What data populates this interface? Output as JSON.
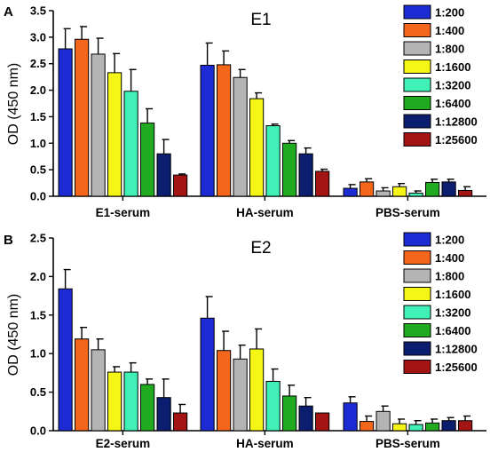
{
  "colors": [
    "#1c2bd4",
    "#f4661a",
    "#b4b4b4",
    "#f5f516",
    "#40f0b6",
    "#1faa1f",
    "#0b1d6e",
    "#a31414"
  ],
  "chart_data": [
    {
      "type": "bar",
      "panel_label": "A",
      "title": "E1",
      "xlabel": "",
      "ylabel": "OD (450 nm)",
      "ylim": [
        0,
        3.5
      ],
      "yticks": [
        "0.0",
        "0.5",
        "1.0",
        "1.5",
        "2.0",
        "2.5",
        "3.0",
        "3.5"
      ],
      "categories": [
        "E1-serum",
        "HA-serum",
        "PBS-serum"
      ],
      "legend_position": "top-right",
      "series": [
        {
          "name": "1:200",
          "values": [
            2.78,
            2.47,
            0.15
          ],
          "errors": [
            0.38,
            0.42,
            0.07
          ]
        },
        {
          "name": "1:400",
          "values": [
            2.96,
            2.48,
            0.27
          ],
          "errors": [
            0.24,
            0.26,
            0.06
          ]
        },
        {
          "name": "1:800",
          "values": [
            2.68,
            2.24,
            0.1
          ],
          "errors": [
            0.3,
            0.15,
            0.06
          ]
        },
        {
          "name": "1:1600",
          "values": [
            2.33,
            1.84,
            0.18
          ],
          "errors": [
            0.36,
            0.11,
            0.06
          ]
        },
        {
          "name": "1:3200",
          "values": [
            1.98,
            1.33,
            0.06
          ],
          "errors": [
            0.41,
            0.03,
            0.04
          ]
        },
        {
          "name": "1:6400",
          "values": [
            1.38,
            1.0,
            0.26
          ],
          "errors": [
            0.27,
            0.05,
            0.06
          ]
        },
        {
          "name": "1:12800",
          "values": [
            0.8,
            0.8,
            0.27
          ],
          "errors": [
            0.27,
            0.11,
            0.05
          ]
        },
        {
          "name": "1:25600",
          "values": [
            0.4,
            0.47,
            0.11
          ],
          "errors": [
            0.02,
            0.04,
            0.07
          ]
        }
      ]
    },
    {
      "type": "bar",
      "panel_label": "B",
      "title": "E2",
      "xlabel": "",
      "ylabel": "OD (450 nm)",
      "ylim": [
        0,
        2.5
      ],
      "yticks": [
        "0.0",
        "0.5",
        "1.0",
        "1.5",
        "2.0",
        "2.5"
      ],
      "categories": [
        "E2-serum",
        "HA-serum",
        "PBS-serum"
      ],
      "legend_position": "top-right",
      "series": [
        {
          "name": "1:200",
          "values": [
            1.84,
            1.46,
            0.36
          ],
          "errors": [
            0.25,
            0.28,
            0.08
          ]
        },
        {
          "name": "1:400",
          "values": [
            1.19,
            1.04,
            0.12
          ],
          "errors": [
            0.15,
            0.25,
            0.07
          ]
        },
        {
          "name": "1:800",
          "values": [
            1.05,
            0.93,
            0.25
          ],
          "errors": [
            0.14,
            0.18,
            0.07
          ]
        },
        {
          "name": "1:1600",
          "values": [
            0.76,
            1.06,
            0.09
          ],
          "errors": [
            0.07,
            0.26,
            0.06
          ]
        },
        {
          "name": "1:3200",
          "values": [
            0.76,
            0.64,
            0.08
          ],
          "errors": [
            0.12,
            0.16,
            0.05
          ]
        },
        {
          "name": "1:6400",
          "values": [
            0.6,
            0.45,
            0.1
          ],
          "errors": [
            0.07,
            0.14,
            0.05
          ]
        },
        {
          "name": "1:12800",
          "values": [
            0.43,
            0.32,
            0.13
          ],
          "errors": [
            0.24,
            0.11,
            0.04
          ]
        },
        {
          "name": "1:25600",
          "values": [
            0.23,
            0.23,
            0.13
          ],
          "errors": [
            0.11,
            0.0,
            0.06
          ]
        }
      ]
    }
  ]
}
